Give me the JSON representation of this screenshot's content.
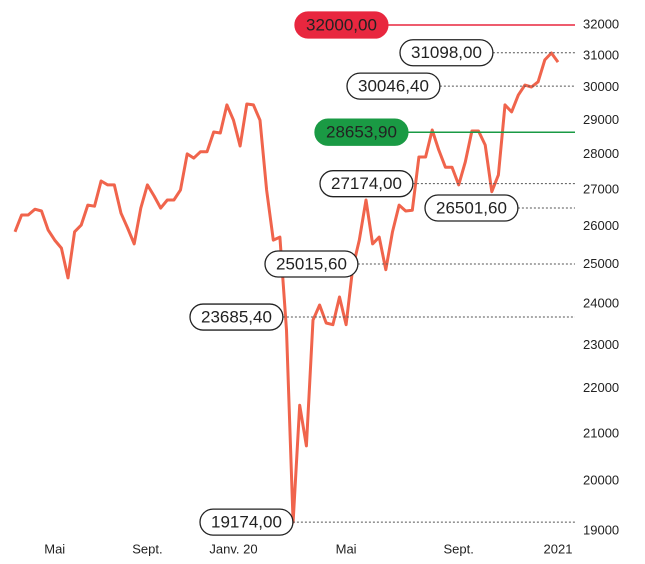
{
  "chart_data": {
    "type": "line",
    "log_scale": true,
    "color": "#f0644c",
    "categories": [
      null,
      null,
      null,
      null,
      null,
      null,
      "Mai",
      null,
      null,
      null,
      null,
      null,
      null,
      null,
      null,
      null,
      null,
      null,
      null,
      null,
      "Sept.",
      null,
      null,
      null,
      null,
      null,
      null,
      null,
      null,
      null,
      null,
      null,
      null,
      "Janv. 20",
      null,
      null,
      null,
      null,
      null,
      null,
      null,
      null,
      null,
      null,
      null,
      null,
      null,
      null,
      null,
      null,
      "Mai",
      null,
      null,
      null,
      null,
      null,
      null,
      null,
      null,
      null,
      null,
      null,
      null,
      null,
      null,
      null,
      null,
      "Sept.",
      null,
      null,
      null,
      null,
      null,
      null,
      null,
      null,
      null,
      null,
      null,
      null,
      null,
      null,
      "2021"
    ],
    "values": [
      25860,
      26310,
      26310,
      26470,
      26420,
      25910,
      25640,
      25430,
      24660,
      25860,
      26040,
      26580,
      26550,
      27250,
      27140,
      27140,
      26360,
      25960,
      25540,
      26500,
      27140,
      26830,
      26500,
      26720,
      26720,
      27000,
      28020,
      27900,
      28080,
      28080,
      28660,
      28630,
      29470,
      29010,
      28250,
      29500,
      29470,
      29010,
      27000,
      25640,
      25720,
      23370,
      19174,
      21630,
      20740,
      23610,
      23980,
      23540,
      23500,
      24180,
      23500,
      24910,
      25640,
      26720,
      25540,
      25720,
      24870,
      25860,
      26580,
      26420,
      26440,
      27930,
      27930,
      28720,
      28130,
      27640,
      27640,
      27140,
      27790,
      28690,
      28690,
      28280,
      26950,
      27420,
      29470,
      29260,
      29770,
      30080,
      30020,
      30180,
      30870,
      31090,
      30800
    ],
    "ylim": [
      19000,
      32000
    ],
    "yticks": [
      19000,
      20000,
      21000,
      22000,
      23000,
      24000,
      25000,
      26000,
      27000,
      28000,
      29000,
      30000,
      31000,
      32000
    ],
    "annotations": [
      {
        "value": 32000,
        "label": "32000,00",
        "color": "#e8273f"
      },
      {
        "value": 31098,
        "label": "31098,00"
      },
      {
        "value": 30046.4,
        "label": "30046,40"
      },
      {
        "value": 28653.9,
        "label": "28653,90",
        "color": "#1a9a44"
      },
      {
        "value": 27174,
        "label": "27174,00"
      },
      {
        "value": 26501.6,
        "label": "26501,60"
      },
      {
        "value": 25015.6,
        "label": "25015,60"
      },
      {
        "value": 23685.4,
        "label": "23685,40"
      },
      {
        "value": 19174,
        "label": "19174,00"
      }
    ]
  }
}
